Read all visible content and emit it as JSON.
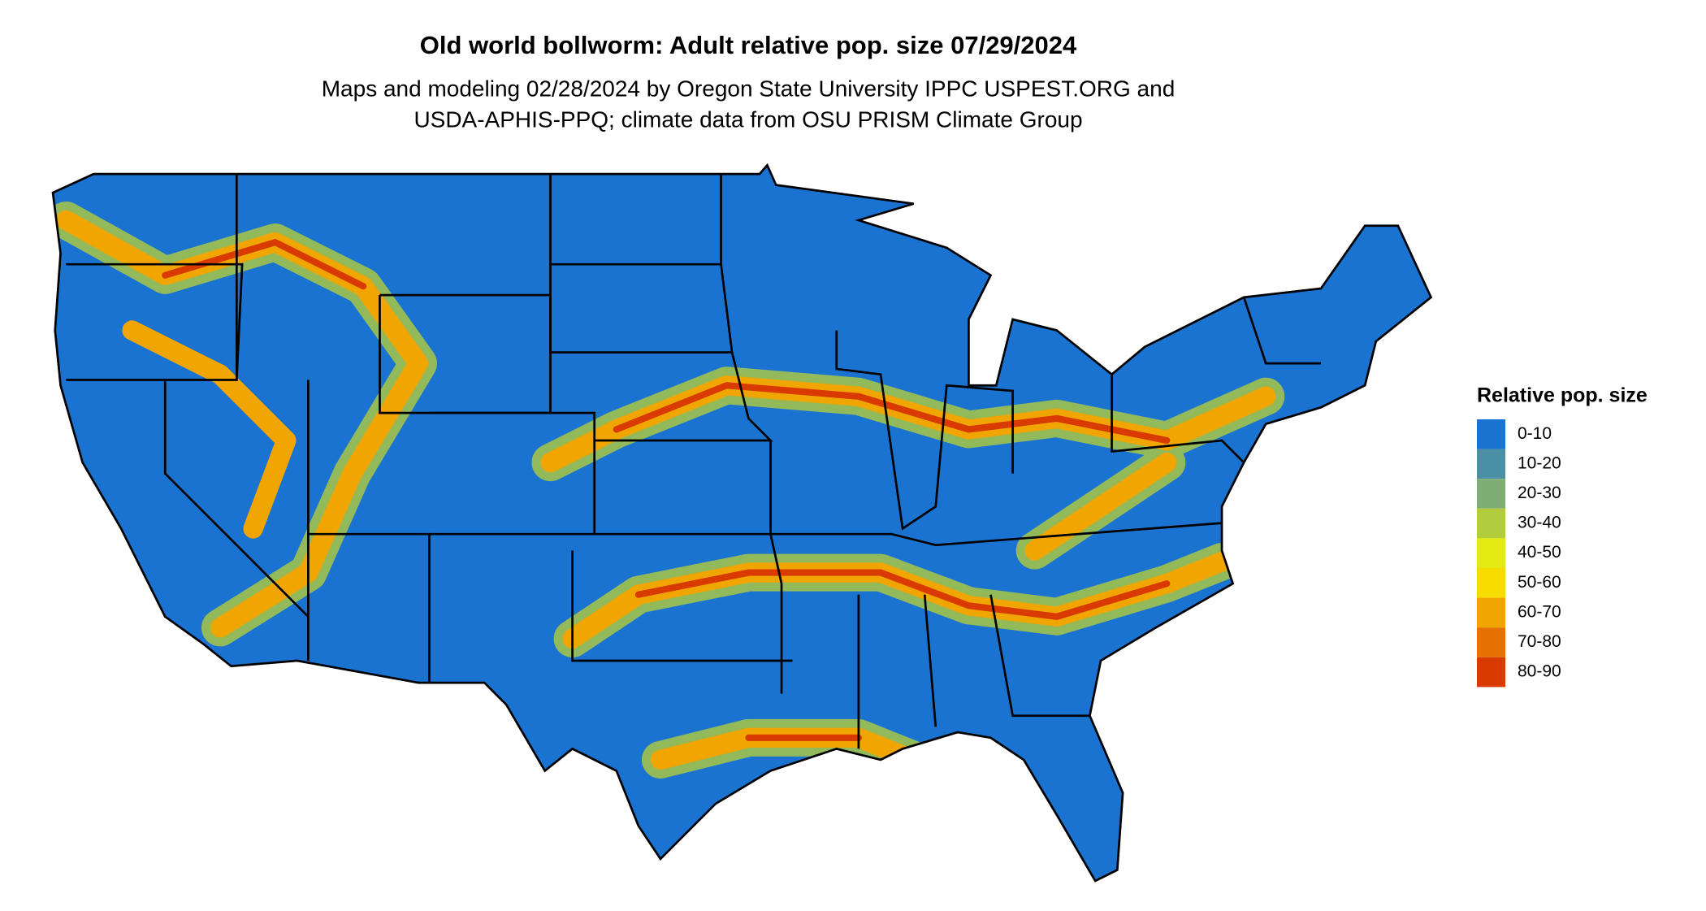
{
  "header": {
    "title": "Old world bollworm: Adult relative pop. size 07/29/2024",
    "subtitle": [
      "Maps and modeling 02/28/2024 by Oregon State University IPPC USPEST.ORG and",
      "USDA-APHIS-PPQ; climate data from OSU PRISM Climate Group"
    ]
  },
  "legend": {
    "title": "Relative pop. size",
    "items": [
      {
        "label": "0-10",
        "color": "#1a73d1"
      },
      {
        "label": "10-20",
        "color": "#4a8fa3"
      },
      {
        "label": "20-30",
        "color": "#7fae74"
      },
      {
        "label": "30-40",
        "color": "#b2cc3c"
      },
      {
        "label": "40-50",
        "color": "#e3eb14"
      },
      {
        "label": "50-60",
        "color": "#f7dc00"
      },
      {
        "label": "60-70",
        "color": "#f0a500"
      },
      {
        "label": "70-80",
        "color": "#e57200"
      },
      {
        "label": "80-90",
        "color": "#d93a00"
      }
    ]
  }
}
